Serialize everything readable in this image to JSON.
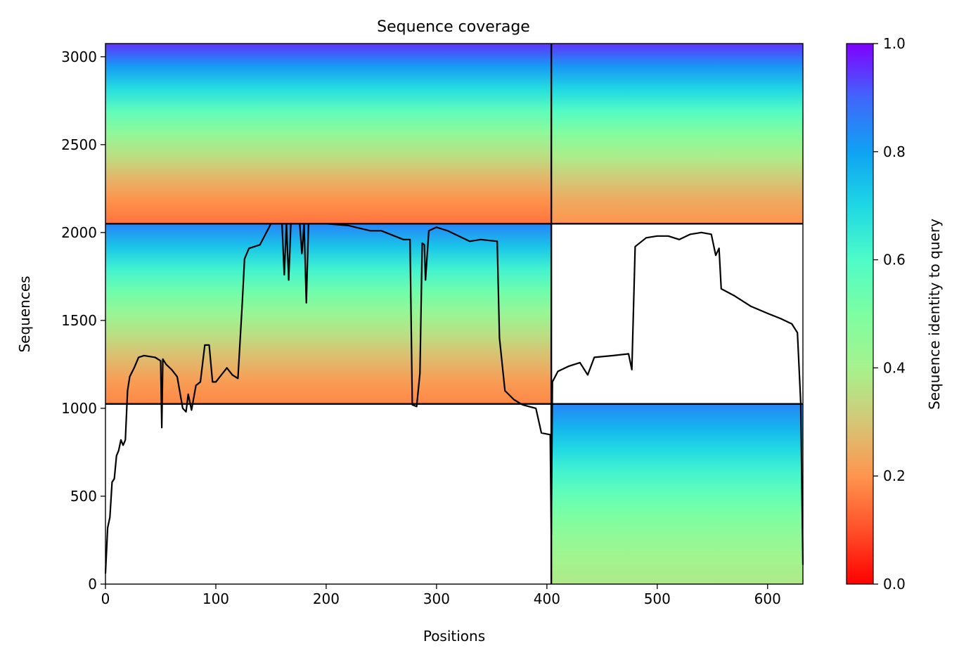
{
  "chart_data": {
    "type": "heatmap",
    "title": "Sequence coverage",
    "xlabel": "Positions",
    "ylabel": "Sequences",
    "xlim": [
      0,
      632
    ],
    "ylim": [
      0,
      3075
    ],
    "x_ticks": [
      0,
      100,
      200,
      300,
      400,
      500,
      600
    ],
    "y_ticks": [
      0,
      500,
      1000,
      1500,
      2000,
      2500,
      3000
    ],
    "colorbar": {
      "label": "Sequence identity to query",
      "range": [
        0,
        1
      ],
      "ticks": [
        "0.0",
        "0.2",
        "0.4",
        "0.6",
        "0.8",
        "1.0"
      ],
      "colormap": "rainbow_r"
    },
    "divider_positions": [
      404
    ],
    "divider_sequences": [
      1025,
      2050
    ],
    "blocks": [
      {
        "x": [
          0,
          404
        ],
        "y": [
          2050,
          3075
        ],
        "identity_bottom": 0.15,
        "identity_top": 0.95
      },
      {
        "x": [
          404,
          632
        ],
        "y": [
          2050,
          3075
        ],
        "identity_bottom": 0.2,
        "identity_top": 0.95
      },
      {
        "x": [
          0,
          404
        ],
        "y": [
          1025,
          2050
        ],
        "identity_bottom": 0.18,
        "identity_top": 0.85
      },
      {
        "x": [
          404,
          632
        ],
        "y": [
          0,
          1025
        ],
        "identity_bottom": 0.38,
        "identity_top": 0.85
      }
    ],
    "coverage_line": [
      [
        0,
        60
      ],
      [
        2,
        320
      ],
      [
        4,
        380
      ],
      [
        6,
        580
      ],
      [
        8,
        600
      ],
      [
        10,
        730
      ],
      [
        12,
        760
      ],
      [
        14,
        820
      ],
      [
        16,
        790
      ],
      [
        18,
        820
      ],
      [
        20,
        1100
      ],
      [
        22,
        1180
      ],
      [
        26,
        1230
      ],
      [
        30,
        1290
      ],
      [
        35,
        1300
      ],
      [
        45,
        1290
      ],
      [
        50,
        1270
      ],
      [
        51,
        890
      ],
      [
        52,
        1280
      ],
      [
        55,
        1250
      ],
      [
        60,
        1220
      ],
      [
        65,
        1180
      ],
      [
        70,
        1000
      ],
      [
        73,
        980
      ],
      [
        75,
        1080
      ],
      [
        78,
        990
      ],
      [
        82,
        1130
      ],
      [
        86,
        1150
      ],
      [
        90,
        1360
      ],
      [
        94,
        1360
      ],
      [
        97,
        1150
      ],
      [
        100,
        1150
      ],
      [
        105,
        1190
      ],
      [
        110,
        1230
      ],
      [
        115,
        1190
      ],
      [
        120,
        1170
      ],
      [
        124,
        1600
      ],
      [
        126,
        1850
      ],
      [
        130,
        1910
      ],
      [
        140,
        1930
      ],
      [
        150,
        2050
      ],
      [
        160,
        2050
      ],
      [
        162,
        1760
      ],
      [
        164,
        2050
      ],
      [
        166,
        1730
      ],
      [
        168,
        2050
      ],
      [
        176,
        2050
      ],
      [
        178,
        1880
      ],
      [
        180,
        2050
      ],
      [
        182,
        1600
      ],
      [
        184,
        2050
      ],
      [
        200,
        2050
      ],
      [
        220,
        2040
      ],
      [
        240,
        2010
      ],
      [
        250,
        2010
      ],
      [
        270,
        1960
      ],
      [
        276,
        1960
      ],
      [
        278,
        1020
      ],
      [
        282,
        1010
      ],
      [
        285,
        1200
      ],
      [
        287,
        1940
      ],
      [
        289,
        1930
      ],
      [
        290,
        1730
      ],
      [
        293,
        2010
      ],
      [
        300,
        2030
      ],
      [
        310,
        2010
      ],
      [
        320,
        1980
      ],
      [
        330,
        1950
      ],
      [
        340,
        1960
      ],
      [
        355,
        1950
      ],
      [
        357,
        1400
      ],
      [
        362,
        1100
      ],
      [
        370,
        1050
      ],
      [
        378,
        1020
      ],
      [
        390,
        1000
      ],
      [
        395,
        860
      ],
      [
        403,
        850
      ],
      [
        404,
        280
      ],
      [
        405,
        1150
      ],
      [
        410,
        1210
      ],
      [
        420,
        1240
      ],
      [
        430,
        1260
      ],
      [
        437,
        1190
      ],
      [
        443,
        1290
      ],
      [
        460,
        1300
      ],
      [
        474,
        1310
      ],
      [
        477,
        1220
      ],
      [
        480,
        1920
      ],
      [
        490,
        1970
      ],
      [
        500,
        1980
      ],
      [
        510,
        1980
      ],
      [
        520,
        1960
      ],
      [
        530,
        1990
      ],
      [
        540,
        2000
      ],
      [
        549,
        1990
      ],
      [
        553,
        1870
      ],
      [
        556,
        1910
      ],
      [
        558,
        1680
      ],
      [
        570,
        1640
      ],
      [
        585,
        1580
      ],
      [
        600,
        1540
      ],
      [
        612,
        1510
      ],
      [
        622,
        1480
      ],
      [
        627,
        1430
      ],
      [
        630,
        1030
      ],
      [
        632,
        110
      ]
    ]
  }
}
